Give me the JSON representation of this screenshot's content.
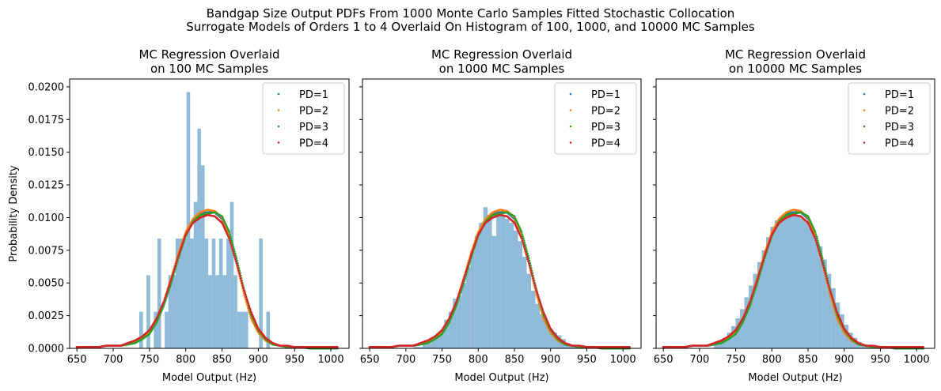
{
  "figure": {
    "suptitle_line1": "Bandgap Size Output PDFs From 1000 Monte Carlo Samples Fitted Stochastic Collocation",
    "suptitle_line2": "Surrogate Models of Orders 1 to 4 Overlaid On Histogram of 100, 1000, and 10000 MC Samples"
  },
  "colors": {
    "histogram": "#1f77b4",
    "pd1": "#1f77b4",
    "pd2": "#ff7f0e",
    "pd3": "#2ca02c",
    "pd4": "#d62728"
  },
  "chart_data": [
    {
      "type": "bar",
      "title_line1": "MC Regression Overlaid",
      "title_line2": "on 100 MC Samples",
      "xlabel": "Model Output (Hz)",
      "ylabel": "Probability Density",
      "xlim": [
        640,
        1025
      ],
      "ylim": [
        0,
        0.0206
      ],
      "xticks": [
        650,
        700,
        750,
        800,
        850,
        900,
        950,
        1000
      ],
      "yticks": [
        "0.0000",
        "0.0025",
        "0.0050",
        "0.0075",
        "0.0100",
        "0.0125",
        "0.0150",
        "0.0175",
        "0.0200"
      ],
      "legend": [
        "PD=1",
        "PD=2",
        "PD=3",
        "PD=4"
      ],
      "legend_loc": "upper right",
      "histogram": {
        "bin_edges": [
          736,
          741,
          746,
          751,
          756,
          761,
          766,
          771,
          776,
          781,
          786,
          791,
          796,
          801,
          806,
          811,
          816,
          821,
          826,
          831,
          836,
          841,
          846,
          851,
          856,
          861,
          866,
          871,
          876,
          881,
          886,
          891,
          896,
          901,
          906,
          911,
          916
        ],
        "densities": [
          0.0028,
          0,
          0.0056,
          0,
          0.0028,
          0.0084,
          0,
          0.0028,
          0.0056,
          0.0056,
          0.0084,
          0.0084,
          0.0084,
          0.0196,
          0.0084,
          0.0112,
          0.0168,
          0.014,
          0.0084,
          0.0056,
          0.0084,
          0.0056,
          0.0084,
          0.0056,
          0.0084,
          0.0112,
          0.0056,
          0.0028,
          0.0028,
          0.0028,
          0,
          0,
          0,
          0.0084,
          0,
          0.0028
        ]
      }
    },
    {
      "type": "bar",
      "title_line1": "MC Regression Overlaid",
      "title_line2": "on 1000 MC Samples",
      "xlabel": "Model Output (Hz)",
      "ylabel": "",
      "xlim": [
        640,
        1025
      ],
      "ylim": [
        0,
        0.0206
      ],
      "xticks": [
        650,
        700,
        750,
        800,
        850,
        900,
        950,
        1000
      ],
      "yticks": [
        "0.0000",
        "0.0025",
        "0.0050",
        "0.0075",
        "0.0100",
        "0.0125",
        "0.0150",
        "0.0175",
        "0.0200"
      ],
      "legend": [
        "PD=1",
        "PD=2",
        "PD=3",
        "PD=4"
      ],
      "legend_loc": "upper right",
      "histogram": {
        "bin_edges": [
          711,
          717,
          723,
          729,
          735,
          741,
          747,
          753,
          759,
          765,
          771,
          777,
          783,
          789,
          795,
          801,
          807,
          813,
          819,
          825,
          831,
          837,
          843,
          849,
          855,
          861,
          867,
          873,
          879,
          885,
          891,
          897,
          903,
          909,
          915,
          921,
          927,
          933,
          939
        ],
        "densities": [
          0.0001,
          0.0001,
          0.0003,
          0.0004,
          0.0007,
          0.001,
          0.0014,
          0.0022,
          0.0028,
          0.0038,
          0.004,
          0.005,
          0.0062,
          0.0074,
          0.0086,
          0.0096,
          0.0108,
          0.0102,
          0.0086,
          0.0105,
          0.0101,
          0.0099,
          0.0096,
          0.009,
          0.0082,
          0.007,
          0.0057,
          0.0044,
          0.0034,
          0.0026,
          0.0021,
          0.0015,
          0.0012,
          0.001,
          0.0007,
          0.0004,
          0.0003,
          0.0002
        ]
      }
    },
    {
      "type": "bar",
      "title_line1": "MC Regression Overlaid",
      "title_line2": "on 10000 MC Samples",
      "xlabel": "Model Output (Hz)",
      "ylabel": "",
      "xlim": [
        640,
        1025
      ],
      "ylim": [
        0,
        0.0206
      ],
      "xticks": [
        650,
        700,
        750,
        800,
        850,
        900,
        950,
        1000
      ],
      "yticks": [
        "0.0000",
        "0.0025",
        "0.0050",
        "0.0075",
        "0.0100",
        "0.0125",
        "0.0150",
        "0.0175",
        "0.0200"
      ],
      "legend": [
        "PD=1",
        "PD=2",
        "PD=3",
        "PD=4"
      ],
      "legend_loc": "upper right",
      "histogram": {
        "bin_edges": [
          720,
          726,
          732,
          738,
          744,
          750,
          756,
          762,
          768,
          774,
          780,
          786,
          792,
          798,
          804,
          810,
          816,
          822,
          828,
          834,
          840,
          846,
          852,
          858,
          864,
          870,
          876,
          882,
          888,
          894,
          900,
          906,
          912,
          918,
          924,
          930,
          936
        ],
        "densities": [
          0.0003,
          0.0005,
          0.0008,
          0.0012,
          0.0017,
          0.0023,
          0.003,
          0.0039,
          0.0048,
          0.0057,
          0.0066,
          0.0075,
          0.0085,
          0.0093,
          0.0098,
          0.01,
          0.0102,
          0.0104,
          0.0103,
          0.0101,
          0.0099,
          0.0096,
          0.0092,
          0.0086,
          0.0078,
          0.0068,
          0.0057,
          0.0046,
          0.0035,
          0.0026,
          0.0018,
          0.0012,
          0.0008,
          0.0005,
          0.0003,
          0.0002
        ]
      }
    }
  ],
  "pdf_curves": {
    "x": [
      650,
      660,
      670,
      680,
      690,
      700,
      710,
      720,
      730,
      740,
      750,
      760,
      770,
      780,
      790,
      800,
      810,
      820,
      830,
      840,
      850,
      860,
      870,
      880,
      890,
      900,
      910,
      920,
      930,
      940,
      950,
      960,
      970,
      980,
      990,
      1000,
      1010
    ],
    "series": [
      {
        "name": "PD=1",
        "y": [
          0.0001,
          0.0001,
          0.0001,
          0.0001,
          0.0002,
          0.0002,
          0.0002,
          0.0003,
          0.0005,
          0.0008,
          0.0012,
          0.0022,
          0.0035,
          0.0052,
          0.0071,
          0.0088,
          0.0098,
          0.0103,
          0.0104,
          0.0104,
          0.0099,
          0.0086,
          0.0066,
          0.0044,
          0.0025,
          0.0013,
          0.0006,
          0.0003,
          0.0002,
          0.0001,
          0.0001,
          0.0001,
          0.0,
          0.0,
          0.0,
          0.0,
          0.0
        ]
      },
      {
        "name": "PD=2",
        "y": [
          0.0001,
          0.0001,
          0.0001,
          0.0001,
          0.0002,
          0.0002,
          0.0002,
          0.0003,
          0.0005,
          0.0008,
          0.0013,
          0.0023,
          0.0036,
          0.0054,
          0.0073,
          0.0089,
          0.0099,
          0.0104,
          0.0106,
          0.0105,
          0.01,
          0.0086,
          0.0065,
          0.0042,
          0.0023,
          0.0012,
          0.0006,
          0.0003,
          0.0002,
          0.0001,
          0.0001,
          0.0001,
          0.0,
          0.0,
          0.0,
          0.0,
          0.0
        ]
      },
      {
        "name": "PD=3",
        "y": [
          0.0001,
          0.0001,
          0.0001,
          0.0001,
          0.0002,
          0.0002,
          0.0002,
          0.0003,
          0.0004,
          0.0007,
          0.0011,
          0.002,
          0.0033,
          0.005,
          0.0069,
          0.0086,
          0.0097,
          0.0102,
          0.0103,
          0.0104,
          0.0101,
          0.0089,
          0.0069,
          0.0046,
          0.0026,
          0.0014,
          0.0007,
          0.0003,
          0.0002,
          0.0001,
          0.0001,
          0.0001,
          0.0,
          0.0,
          0.0,
          0.0,
          0.0
        ]
      },
      {
        "name": "PD=4",
        "y": [
          0.0001,
          0.0001,
          0.0001,
          0.0001,
          0.0002,
          0.0002,
          0.0002,
          0.0004,
          0.0006,
          0.0009,
          0.0014,
          0.0023,
          0.0036,
          0.0053,
          0.0071,
          0.0087,
          0.0096,
          0.01,
          0.0102,
          0.0101,
          0.0096,
          0.0084,
          0.0065,
          0.0045,
          0.0028,
          0.0015,
          0.0008,
          0.0004,
          0.0002,
          0.0002,
          0.0001,
          0.0001,
          0.0001,
          0.0001,
          0.0001,
          0.0001,
          0.0001
        ]
      }
    ]
  }
}
